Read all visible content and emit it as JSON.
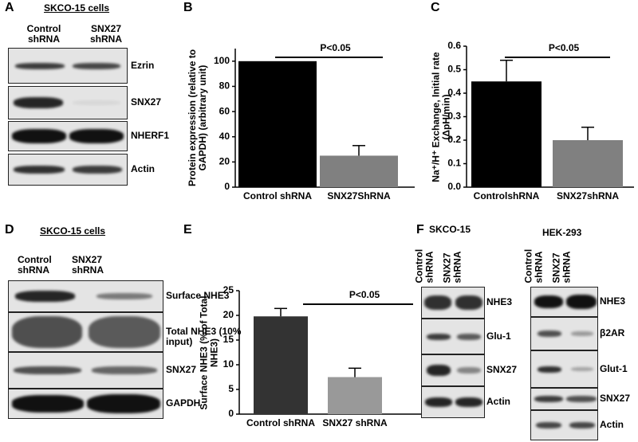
{
  "panels": {
    "A": {
      "label": "A",
      "title": "SKCO-15 cells",
      "lanes": [
        "Control shRNA",
        "SNX27 shRNA"
      ],
      "blots": [
        "Ezrin",
        "SNX27",
        "NHERF1",
        "Actin"
      ]
    },
    "D": {
      "label": "D",
      "title": "SKCO-15 cells",
      "lanes": [
        "Control shRNA",
        "SNX27 shRNA"
      ],
      "blots": [
        "Surface NHE3",
        "Total NHE3 (10% input)",
        "SNX27",
        "GAPDH"
      ]
    },
    "F": {
      "label": "F",
      "groups": [
        {
          "title": "SKCO-15",
          "lanes": [
            "Control shRNA",
            "SNX27 shRNA"
          ],
          "blots": [
            "NHE3",
            "Glu-1",
            "SNX27",
            "Actin"
          ]
        },
        {
          "title": "HEK-293",
          "lanes": [
            "Control shRNA",
            "SNX27 shRNA"
          ],
          "blots": [
            "NHE3",
            "β2AR",
            "Glut-1",
            "SNX27",
            "Actin"
          ]
        }
      ]
    }
  },
  "chart_data": [
    {
      "type": "bar",
      "panel": "B",
      "y_label": "Protein expression (relative to GAPDH) (arbitrary unit)",
      "categories": [
        "Control shRNA",
        "SNX27ShRNA"
      ],
      "values": [
        100,
        25
      ],
      "errors": [
        null,
        8
      ],
      "colors": [
        "#000000",
        "#808080"
      ],
      "ylim": [
        0,
        110
      ],
      "yticks": [
        0,
        20,
        40,
        60,
        80,
        100
      ],
      "annotation": "P<0.05"
    },
    {
      "type": "bar",
      "panel": "C",
      "y_label": "Na⁺/H⁺ Exchange, Initial rate (ΔpH/min)",
      "categories": [
        "ControlshRNA",
        "SNX27shRNA"
      ],
      "values": [
        0.45,
        0.2
      ],
      "errors": [
        0.09,
        0.055
      ],
      "colors": [
        "#000000",
        "#808080"
      ],
      "ylim": [
        0,
        0.6
      ],
      "yticks": [
        {
          "value": 0,
          "label": "0.0"
        },
        0.1,
        0.2,
        0.3,
        0.4,
        0.5,
        0.6
      ],
      "annotation": "P<0.05"
    },
    {
      "type": "bar",
      "panel": "E",
      "y_label": "Surface NHE3 (% of Total NHE3)",
      "categories": [
        "Control shRNA",
        "SNX27 shRNA"
      ],
      "values": [
        19.8,
        7.5
      ],
      "errors": [
        1.6,
        1.8
      ],
      "colors": [
        "#333333",
        "#999999"
      ],
      "ylim": [
        0,
        25
      ],
      "yticks": [
        0,
        5,
        10,
        15,
        20,
        25
      ],
      "annotation": "P<0.05"
    }
  ]
}
